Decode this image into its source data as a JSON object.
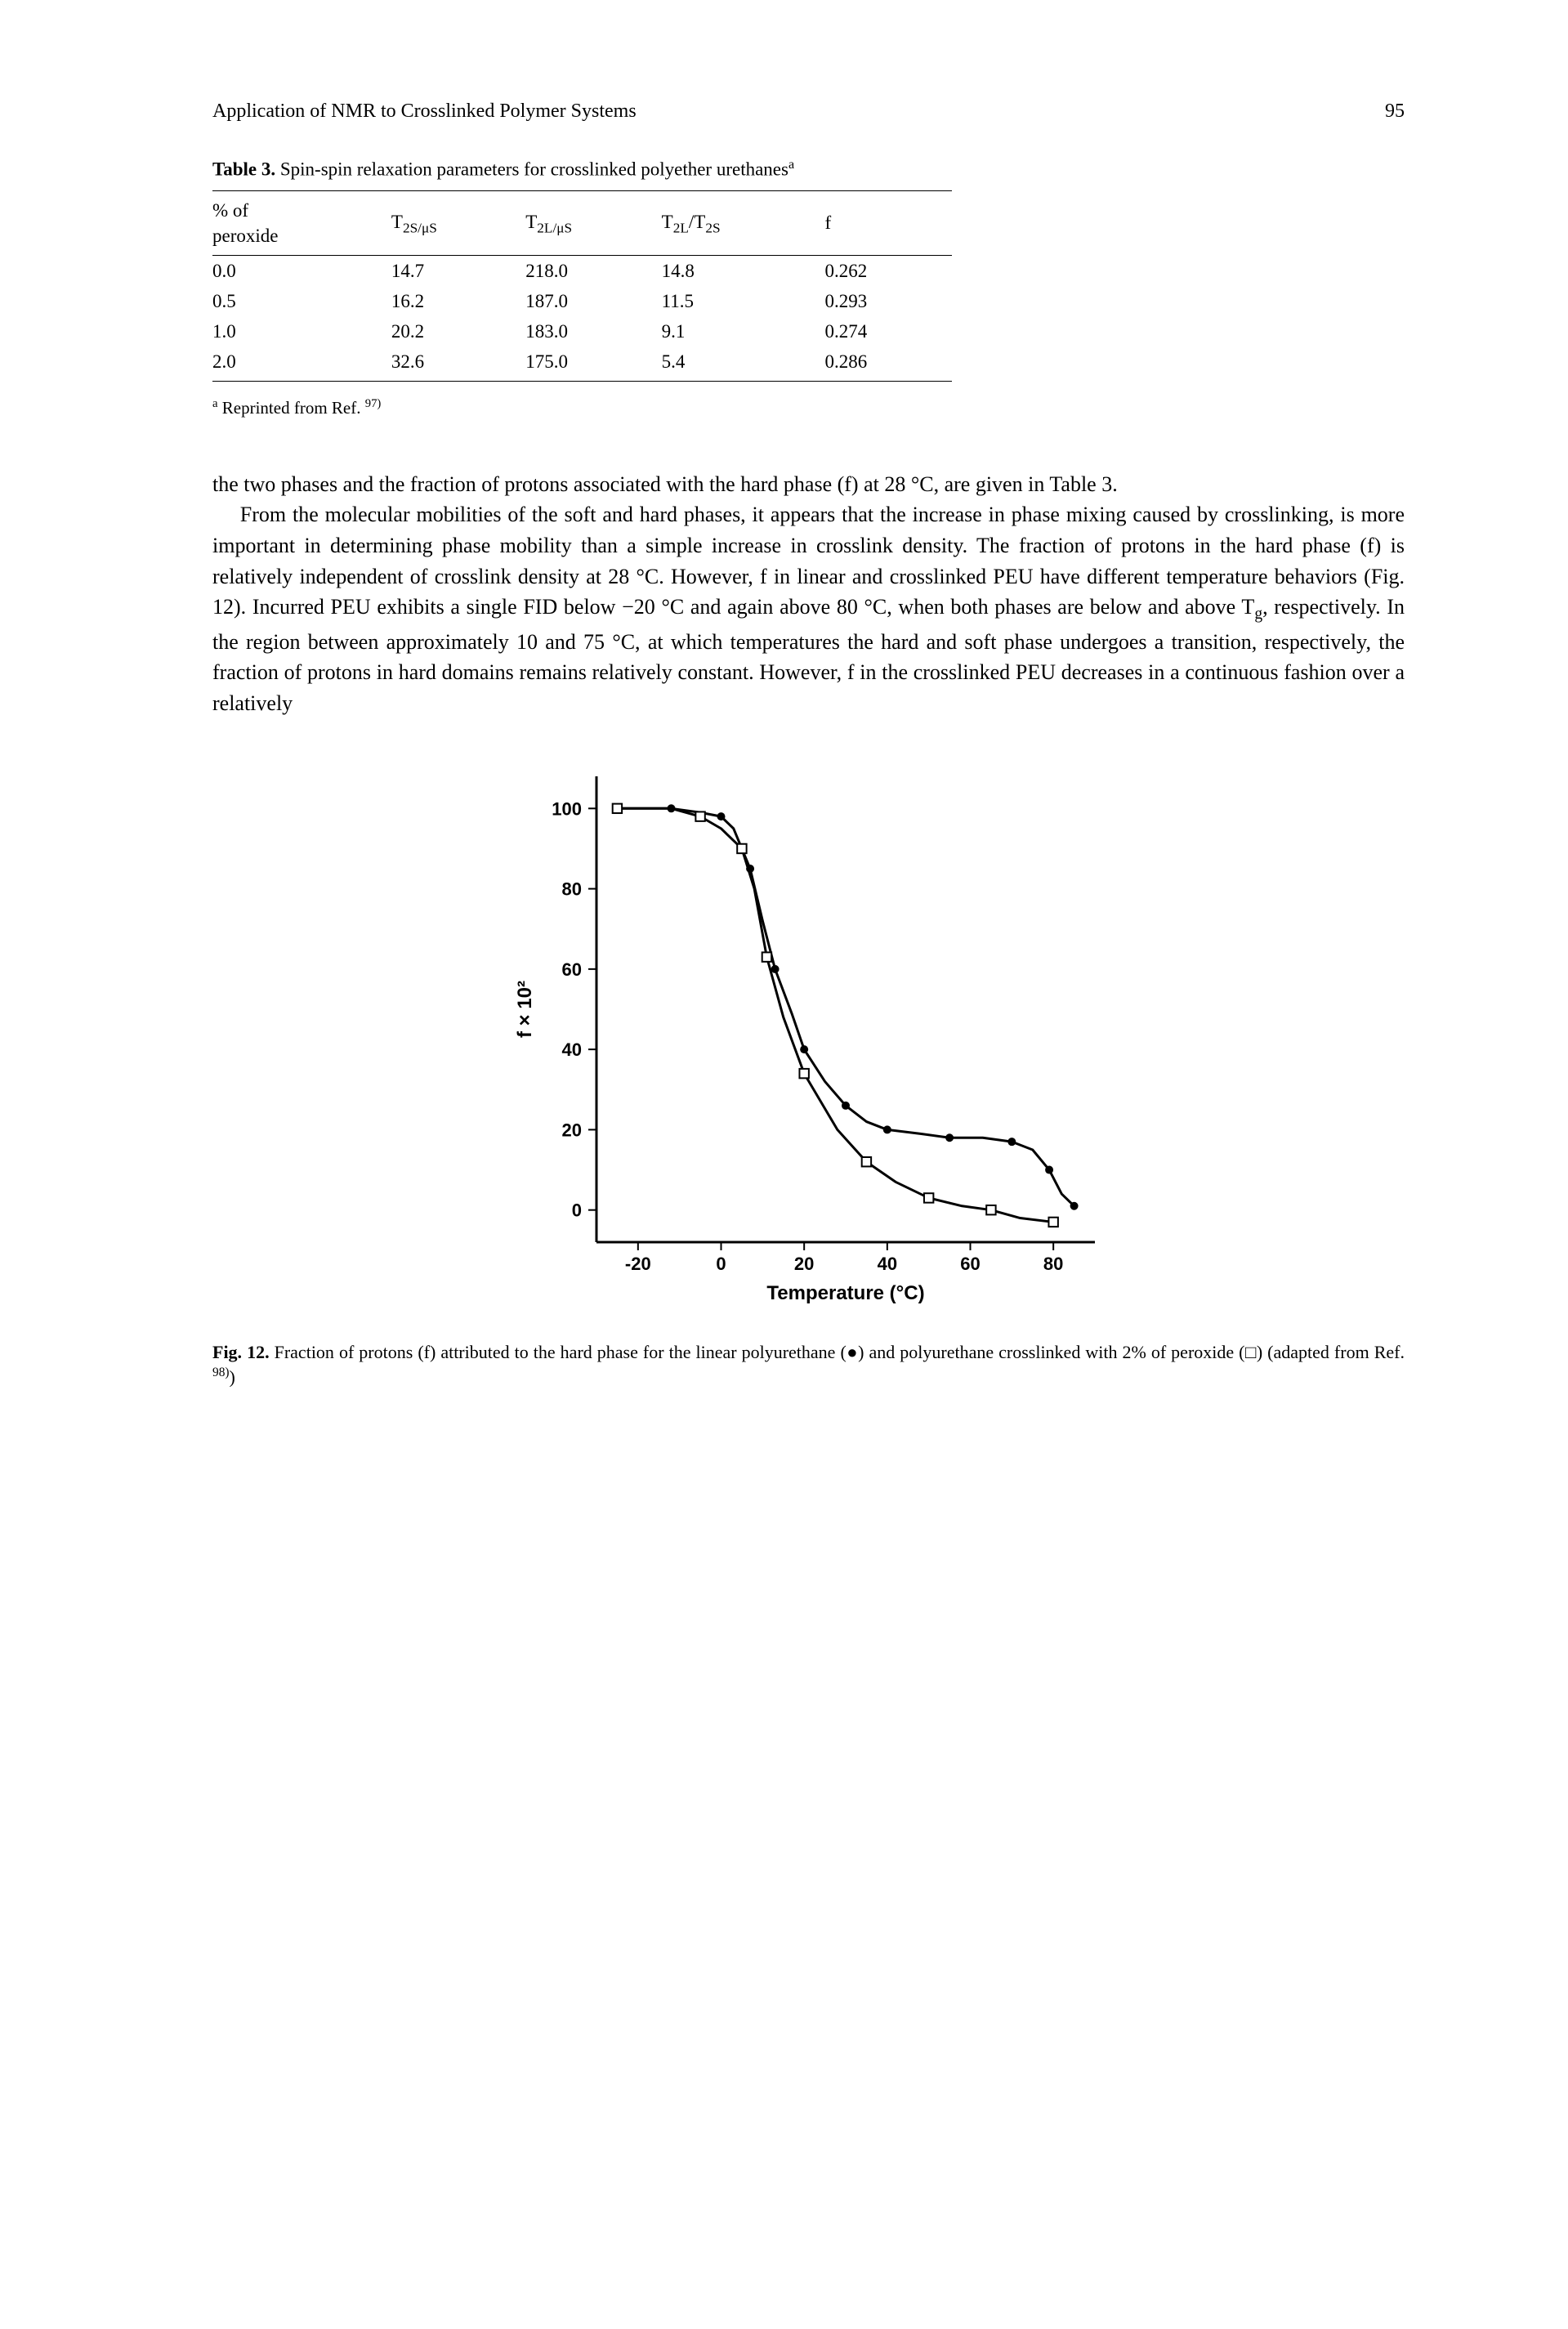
{
  "header": {
    "running_head": "Application of NMR to Crosslinked Polymer Systems",
    "page_number": "95"
  },
  "table": {
    "caption_label": "Table 3.",
    "caption_text": "Spin-spin relaxation parameters for crosslinked polyether urethanes",
    "caption_sup": "a",
    "columns": [
      "% of peroxide",
      "T_2S/μS",
      "T_2L/μS",
      "T_2L/T_2S",
      "f"
    ],
    "col_headers_html": [
      "% of<br>peroxide",
      "T<sub>2S/μS</sub>",
      "T<sub>2L/μS</sub>",
      "T<sub>2L</sub>/T<sub>2S</sub>",
      "f"
    ],
    "rows": [
      [
        "0.0",
        "14.7",
        "218.0",
        "14.8",
        "0.262"
      ],
      [
        "0.5",
        "16.2",
        "187.0",
        "11.5",
        "0.293"
      ],
      [
        "1.0",
        "20.2",
        "183.0",
        "9.1",
        "0.274"
      ],
      [
        "2.0",
        "32.6",
        "175.0",
        "5.4",
        "0.286"
      ]
    ],
    "footnote_sup": "a",
    "footnote_text": "Reprinted from Ref.",
    "footnote_ref": "97)"
  },
  "body": {
    "para1": "the two phases and the fraction of protons associated with the hard phase (f) at 28 °C, are given in Table 3.",
    "para2": "From the molecular mobilities of the soft and hard phases, it appears that the increase in phase mixing caused by crosslinking, is more important in determining phase mobility than a simple increase in crosslink density. The fraction of protons in the hard phase (f) is relatively independent of crosslink density at 28 °C. However, f in linear and crosslinked PEU have different temperature behaviors (Fig. 12). Incurred PEU exhibits a single FID below −20 °C and again above 80 °C, when both phases are below and above T_g, respectively. In the region between approximately 10 and 75 °C, at which temperatures the hard and soft phase undergoes a transition, respectively, the fraction of protons in hard domains remains relatively constant. However, f in the crosslinked PEU decreases in a continuous fashion over a relatively"
  },
  "chart": {
    "type": "line",
    "xlabel": "Temperature (°C)",
    "ylabel": "f × 10²",
    "xlim": [
      -30,
      90
    ],
    "ylim": [
      -8,
      108
    ],
    "xticks": [
      -20,
      0,
      20,
      40,
      60,
      80
    ],
    "yticks": [
      0,
      20,
      40,
      60,
      80,
      100
    ],
    "axis_fontsize": 22,
    "label_fontsize": 24,
    "line_color": "#000000",
    "line_width": 2,
    "marker_size": 8,
    "background_color": "#ffffff",
    "series": [
      {
        "name": "linear",
        "marker": "circle-filled",
        "points": [
          [
            -25,
            100
          ],
          [
            -18,
            100
          ],
          [
            -12,
            100
          ],
          [
            -5,
            99
          ],
          [
            0,
            98
          ],
          [
            3,
            95
          ],
          [
            7,
            85
          ],
          [
            10,
            72
          ],
          [
            13,
            60
          ],
          [
            17,
            49
          ],
          [
            20,
            40
          ],
          [
            25,
            32
          ],
          [
            30,
            26
          ],
          [
            35,
            22
          ],
          [
            40,
            20
          ],
          [
            48,
            19
          ],
          [
            55,
            18
          ],
          [
            63,
            18
          ],
          [
            70,
            17
          ],
          [
            75,
            15
          ],
          [
            79,
            10
          ],
          [
            82,
            4
          ],
          [
            85,
            1
          ]
        ]
      },
      {
        "name": "crosslinked",
        "marker": "square-open",
        "points": [
          [
            -25,
            100
          ],
          [
            -12,
            100
          ],
          [
            -5,
            98
          ],
          [
            0,
            95
          ],
          [
            5,
            90
          ],
          [
            8,
            80
          ],
          [
            11,
            63
          ],
          [
            15,
            48
          ],
          [
            20,
            34
          ],
          [
            28,
            20
          ],
          [
            35,
            12
          ],
          [
            42,
            7
          ],
          [
            50,
            3
          ],
          [
            58,
            1
          ],
          [
            65,
            0
          ],
          [
            72,
            -2
          ],
          [
            80,
            -3
          ]
        ]
      }
    ]
  },
  "figure": {
    "label": "Fig. 12.",
    "caption": "Fraction of protons (f) attributed to the hard phase for the linear polyurethane (●) and polyurethane crosslinked with 2% of peroxide (□) (adapted from Ref.",
    "ref": "98)",
    "close": ")"
  }
}
